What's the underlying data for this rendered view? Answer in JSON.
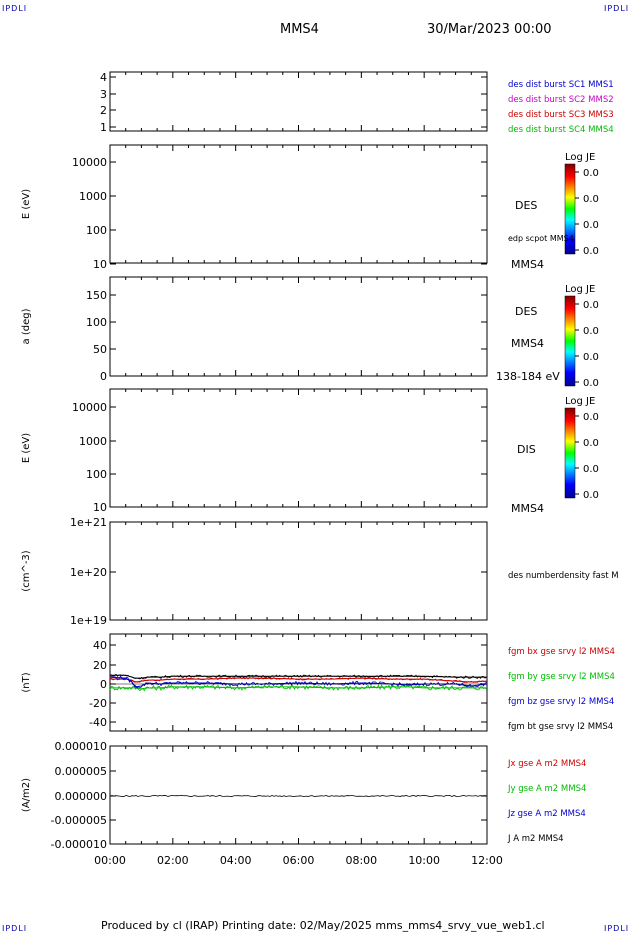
{
  "corners": {
    "tl": "IPDLI",
    "tr": "IPDLI",
    "bl": "IPDLI",
    "br": "IPDLI"
  },
  "header": {
    "spacecraft": "MMS4",
    "date": "30/Mar/2023 00:00"
  },
  "footer": {
    "text": "Produced by cl (IRAP)   Printing date: 02/May/2025   mms_mms4_srvy_vue_web1.cl"
  },
  "xaxis": {
    "ticks": [
      "00:00",
      "02:00",
      "04:00",
      "06:00",
      "08:00",
      "10:00",
      "12:00"
    ],
    "range_hours": [
      0,
      12
    ]
  },
  "panels": {
    "p1": {
      "ticks": [
        "4",
        "3",
        "2",
        "1"
      ],
      "legend": [
        {
          "text": "des dist burst SC1 MMS1",
          "color": "#0000cc"
        },
        {
          "text": "des dist burst SC2 MMS2",
          "color": "#cc00cc"
        },
        {
          "text": "des dist burst SC3 MMS3",
          "color": "#cc0000"
        },
        {
          "text": "des dist burst SC4 MMS4",
          "color": "#00bb00"
        }
      ]
    },
    "p2": {
      "ylabel": "E (eV)",
      "ticks": [
        "10000",
        "1000",
        "100",
        "10"
      ],
      "right": [
        "DES",
        "edp scpot MMS4",
        "MMS4"
      ],
      "cbar": {
        "title": "Log JE",
        "ticks": [
          "0.0",
          "0.0",
          "0.0",
          "0.0"
        ]
      }
    },
    "p3": {
      "ylabel": "a (deg)",
      "ticks": [
        "150",
        "100",
        "50",
        "0"
      ],
      "right": [
        "DES",
        "MMS4",
        "138-184 eV"
      ],
      "cbar": {
        "title": "Log JE",
        "ticks": [
          "0.0",
          "0.0",
          "0.0",
          "0.0"
        ]
      }
    },
    "p4": {
      "ylabel": "E (eV)",
      "ticks": [
        "10000",
        "1000",
        "100",
        "10"
      ],
      "right": [
        "DIS",
        "MMS4"
      ],
      "cbar": {
        "title": "Log JE",
        "ticks": [
          "0.0",
          "0.0",
          "0.0",
          "0.0"
        ]
      }
    },
    "p5": {
      "ylabel": "(cm^-3)",
      "ticks": [
        "1e+21",
        "1e+20",
        "1e+19"
      ],
      "right": [
        "des numberdensity fast M"
      ]
    },
    "p6": {
      "ylabel": "(nT)",
      "ticks": [
        "40",
        "20",
        "0",
        "-20",
        "-40"
      ],
      "legend": [
        {
          "text": "fgm bx gse srvy l2 MMS4",
          "color": "#cc0000"
        },
        {
          "text": "fgm by gse srvy l2 MMS4",
          "color": "#00bb00"
        },
        {
          "text": "fgm bz gse srvy l2 MMS4",
          "color": "#0000cc"
        },
        {
          "text": "fgm bt gse srvy l2 MMS4",
          "color": "#000000"
        }
      ]
    },
    "p7": {
      "ylabel": "(A/m2)",
      "ticks": [
        "0.000010",
        "0.000005",
        "0.000000",
        "-0.000005",
        "-0.000010"
      ],
      "legend": [
        {
          "text": "Jx gse A m2 MMS4",
          "color": "#cc0000"
        },
        {
          "text": "Jy gse A m2 MMS4",
          "color": "#00bb00"
        },
        {
          "text": "Jz gse A m2 MMS4",
          "color": "#0000cc"
        },
        {
          "text": "J A m2 MMS4",
          "color": "#000000"
        }
      ]
    }
  },
  "chart_data": [
    {
      "type": "line",
      "title": "",
      "ylabel": "",
      "ylim": [
        0.5,
        4.5
      ],
      "series": []
    },
    {
      "type": "heatmap",
      "ylabel": "E (eV)",
      "ylim": [
        10,
        20000
      ],
      "yscale": "log",
      "series": []
    },
    {
      "type": "heatmap",
      "ylabel": "a (deg)",
      "ylim": [
        0,
        180
      ],
      "series": []
    },
    {
      "type": "heatmap",
      "ylabel": "E (eV)",
      "ylim": [
        10,
        20000
      ],
      "yscale": "log",
      "series": []
    },
    {
      "type": "line",
      "ylabel": "(cm^-3)",
      "ylim": [
        1e+19,
        1e+21
      ],
      "yscale": "log",
      "series": []
    },
    {
      "type": "line",
      "ylabel": "(nT)",
      "ylim": [
        -50,
        50
      ],
      "x": [
        0,
        0.5,
        0.7,
        0.8,
        1.0,
        1.2,
        1.6,
        2.0,
        3.0,
        4.0,
        5.0,
        6.0,
        7.0,
        8.0,
        9.0,
        9.5,
        10.0,
        11.0,
        11.5,
        12.0
      ],
      "series": [
        {
          "name": "fgm bx gse srvy l2 MMS4",
          "values": [
            5,
            5,
            4,
            2,
            3,
            4,
            4,
            5,
            5,
            6,
            6,
            5,
            5,
            6,
            5,
            5,
            5,
            3,
            2,
            3
          ]
        },
        {
          "name": "fgm by gse srvy l2 MMS4",
          "values": [
            -4,
            -4,
            -4,
            -4,
            -5,
            -4,
            -4,
            -3,
            -3,
            -4,
            -3,
            -3,
            -4,
            -4,
            -3,
            -3,
            -4,
            -4,
            -4,
            -4
          ]
        },
        {
          "name": "fgm bz gse srvy l2 MMS4",
          "values": [
            7,
            6,
            2,
            -3,
            -2,
            1,
            0,
            1,
            1,
            0,
            0,
            1,
            0,
            1,
            0,
            -1,
            0,
            0,
            -2,
            0
          ]
        },
        {
          "name": "fgm bt gse srvy l2 MMS4",
          "values": [
            9,
            9,
            7,
            6,
            6,
            7,
            7,
            8,
            8,
            8,
            8,
            8,
            8,
            8,
            8,
            8,
            8,
            7,
            7,
            7
          ]
        }
      ]
    },
    {
      "type": "line",
      "ylabel": "(A/m2)",
      "ylim": [
        -1e-05,
        1e-05
      ],
      "x": [
        0,
        2,
        4,
        6,
        8,
        10,
        12
      ],
      "series": [
        {
          "name": "J A m2 MMS4",
          "values": [
            0,
            0,
            0,
            0,
            0,
            0,
            0
          ]
        }
      ]
    }
  ]
}
